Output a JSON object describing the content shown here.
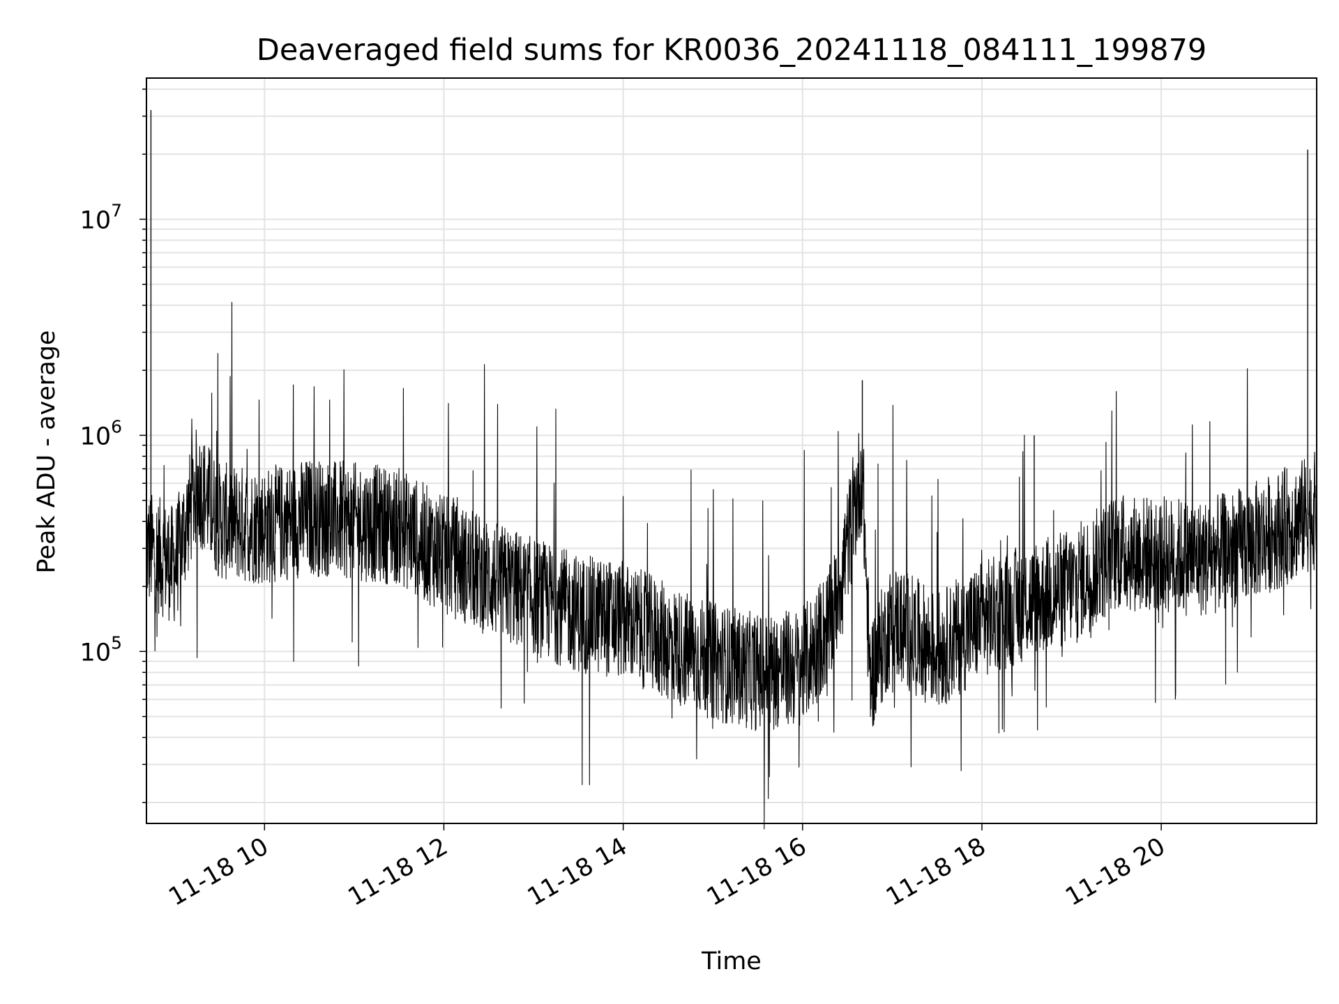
{
  "chart_data": {
    "type": "line",
    "title": "Deaveraged field sums for KR0036_20241118_084111_199879",
    "xlabel": "Time",
    "ylabel": "Peak ADU - average",
    "yscale": "log",
    "ylim": [
      16000,
      45000000
    ],
    "xlim": [
      "11-18 08:41",
      "11-18 21:44"
    ],
    "grid": true,
    "legend": "none",
    "line_color": "#000000",
    "x_ticks": [
      "11-18 10",
      "11-18 12",
      "11-18 14",
      "11-18 16",
      "11-18 18",
      "11-18 20"
    ],
    "y_ticks": [
      {
        "value": 100000,
        "base": "10",
        "exp": "5"
      },
      {
        "value": 1000000,
        "base": "10",
        "exp": "6"
      },
      {
        "value": 10000000,
        "base": "10",
        "exp": "7"
      }
    ],
    "series": [
      {
        "x": [
          "11-18 08:41",
          "11-18 09:00",
          "11-18 09:15",
          "11-18 09:30",
          "11-18 10:00",
          "11-18 10:30",
          "11-18 11:00",
          "11-18 11:30",
          "11-18 12:00",
          "11-18 12:30",
          "11-18 13:00",
          "11-18 13:30",
          "11-18 14:00",
          "11-18 14:30",
          "11-18 15:00",
          "11-18 15:30",
          "11-18 16:00",
          "11-18 16:20",
          "11-18 16:40",
          "11-18 16:45",
          "11-18 17:00",
          "11-18 17:30",
          "11-18 18:00",
          "11-18 18:30",
          "11-18 19:00",
          "11-18 19:30",
          "11-18 20:00",
          "11-18 20:30",
          "11-18 21:00",
          "11-18 21:30",
          "11-18 21:44"
        ],
        "y": [
          300000,
          250000,
          600000,
          400000,
          380000,
          420000,
          400000,
          380000,
          280000,
          220000,
          180000,
          150000,
          140000,
          110000,
          90000,
          80000,
          85000,
          140000,
          700000,
          75000,
          140000,
          100000,
          140000,
          170000,
          200000,
          290000,
          280000,
          270000,
          320000,
          400000,
          450000
        ]
      }
    ],
    "spikes": [
      {
        "x": "11-18 08:44",
        "y": 32000000
      },
      {
        "x": "11-18 16:40",
        "y": 1800000
      },
      {
        "x": "11-18 18:35",
        "y": 1000000
      },
      {
        "x": "11-18 21:38",
        "y": 21000000
      }
    ]
  }
}
